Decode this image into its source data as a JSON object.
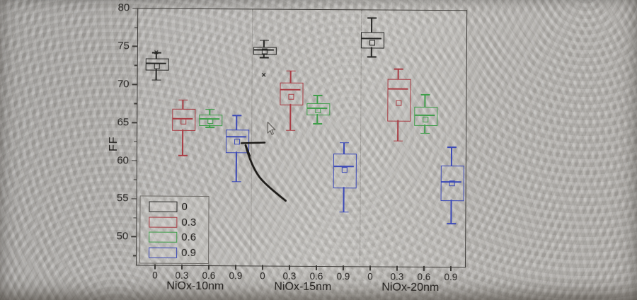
{
  "chart_data": {
    "type": "boxplot",
    "title": "",
    "ylabel": "FF",
    "ylim": [
      46.4,
      80
    ],
    "y_major_ticks": [
      50,
      55,
      60,
      65,
      70,
      75,
      80
    ],
    "y_minor_step": 2.5,
    "x_sublabels": [
      "0",
      "0.3",
      "0.6",
      "0.9"
    ],
    "grid": false,
    "group_separators": "dotted",
    "groups": [
      {
        "label": "NiOx-10nm",
        "boxes": [
          {
            "series": "0",
            "low": 70.6,
            "q1": 72.0,
            "median": 72.8,
            "mean": 72.5,
            "q3": 73.4,
            "high": 74.2,
            "x_markers": [
              74.2
            ]
          },
          {
            "series": "0.3",
            "low": 60.7,
            "q1": 64.1,
            "median": 65.5,
            "mean": 65.2,
            "q3": 66.8,
            "high": 68.0,
            "x_markers": []
          },
          {
            "series": "0.6",
            "low": 64.4,
            "q1": 64.8,
            "median": 65.5,
            "mean": 65.3,
            "q3": 66.1,
            "high": 66.8,
            "x_markers": []
          },
          {
            "series": "0.9",
            "low": 57.3,
            "q1": 61.3,
            "median": 63.2,
            "mean": 62.6,
            "q3": 64.1,
            "high": 66.0,
            "x_markers": []
          }
        ]
      },
      {
        "label": "NiOx-15nm",
        "boxes": [
          {
            "series": "0",
            "low": 73.6,
            "q1": 74.2,
            "median": 74.6,
            "mean": 74.5,
            "q3": 75.0,
            "high": 75.9,
            "x_markers": [
              71.3
            ]
          },
          {
            "series": "0.3",
            "low": 64.1,
            "q1": 67.6,
            "median": 69.4,
            "mean": 68.6,
            "q3": 70.4,
            "high": 71.9,
            "x_markers": []
          },
          {
            "series": "0.6",
            "low": 65.0,
            "q1": 66.3,
            "median": 67.0,
            "mean": 66.8,
            "q3": 67.7,
            "high": 68.7,
            "x_markers": []
          },
          {
            "series": "0.9",
            "low": 53.4,
            "q1": 56.7,
            "median": 59.4,
            "mean": 59.0,
            "q3": 61.1,
            "high": 62.5,
            "x_markers": []
          }
        ]
      },
      {
        "label": "NiOx-20nm",
        "boxes": [
          {
            "series": "0",
            "low": 73.8,
            "q1": 75.1,
            "median": 76.2,
            "mean": 75.7,
            "q3": 77.1,
            "high": 78.9,
            "x_markers": []
          },
          {
            "series": "0.3",
            "low": 62.8,
            "q1": 65.5,
            "median": 69.6,
            "mean": 67.8,
            "q3": 70.9,
            "high": 72.2,
            "x_markers": []
          },
          {
            "series": "0.6",
            "low": 63.8,
            "q1": 65.0,
            "median": 66.2,
            "mean": 65.7,
            "q3": 67.3,
            "high": 68.9,
            "x_markers": []
          },
          {
            "series": "0.9",
            "low": 52.0,
            "q1": 55.1,
            "median": 57.5,
            "mean": 57.3,
            "q3": 59.6,
            "high": 62.0,
            "x_markers": []
          }
        ]
      }
    ],
    "legend": {
      "position": "bottom-left",
      "items": [
        {
          "label": "0",
          "color": "#262624"
        },
        {
          "label": "0.3",
          "color": "#a93c43"
        },
        {
          "label": "0.6",
          "color": "#3e9e49"
        },
        {
          "label": "0.9",
          "color": "#3b49b8"
        }
      ]
    },
    "annotations": {
      "hand_drawn_arrow": "stroke pointing from blue NiOx-10nm 0.9 box sweeping down-right",
      "mouse_cursor": "arrow-pointer"
    }
  }
}
